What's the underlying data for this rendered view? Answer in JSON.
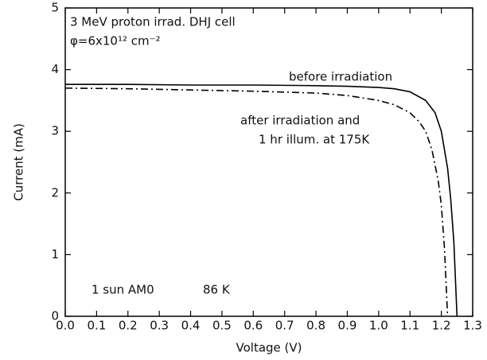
{
  "chart_data": {
    "type": "line",
    "annotations": [
      "3 MeV proton irrad. DHJ cell",
      "φ=6x10¹² cm⁻²",
      "before irradiation",
      "after irradiation and",
      "1 hr illum. at 175K",
      "1 sun AM0",
      "86 K"
    ],
    "xlabel": "Voltage (V)",
    "ylabel": "Current (mA)",
    "xlim": [
      0,
      1.3
    ],
    "xticks": [
      {
        "value": 0,
        "label": "0.0"
      },
      0.1,
      0.2,
      0.3,
      0.4,
      0.5,
      0.6,
      0.7,
      0.8,
      0.9,
      {
        "value": 1,
        "label": "1.0"
      },
      1.1,
      1.2,
      1.3
    ],
    "ylim": [
      0,
      5
    ],
    "yticks": [
      0,
      1,
      2,
      3,
      4,
      5
    ],
    "series": [
      {
        "name": "before irradiation",
        "color": "#000000",
        "dash": "solid",
        "x": [
          0,
          0.2,
          0.4,
          0.6,
          0.8,
          0.9,
          1.0,
          1.05,
          1.1,
          1.15,
          1.18,
          1.2,
          1.22,
          1.23,
          1.24,
          1.25
        ],
        "values": [
          3.76,
          3.76,
          3.75,
          3.75,
          3.74,
          3.73,
          3.71,
          3.69,
          3.64,
          3.5,
          3.3,
          3.0,
          2.4,
          1.9,
          1.2,
          0
        ]
      },
      {
        "name": "after irradiation and 1 hr illum. at 175K",
        "color": "#000000",
        "dash": "dashdot",
        "x": [
          0,
          0.2,
          0.4,
          0.6,
          0.8,
          0.9,
          1.0,
          1.05,
          1.1,
          1.13,
          1.15,
          1.17,
          1.19,
          1.2,
          1.21,
          1.22
        ],
        "values": [
          3.7,
          3.69,
          3.67,
          3.65,
          3.62,
          3.58,
          3.5,
          3.43,
          3.3,
          3.15,
          3.0,
          2.7,
          2.2,
          1.8,
          1.1,
          0
        ]
      }
    ]
  }
}
